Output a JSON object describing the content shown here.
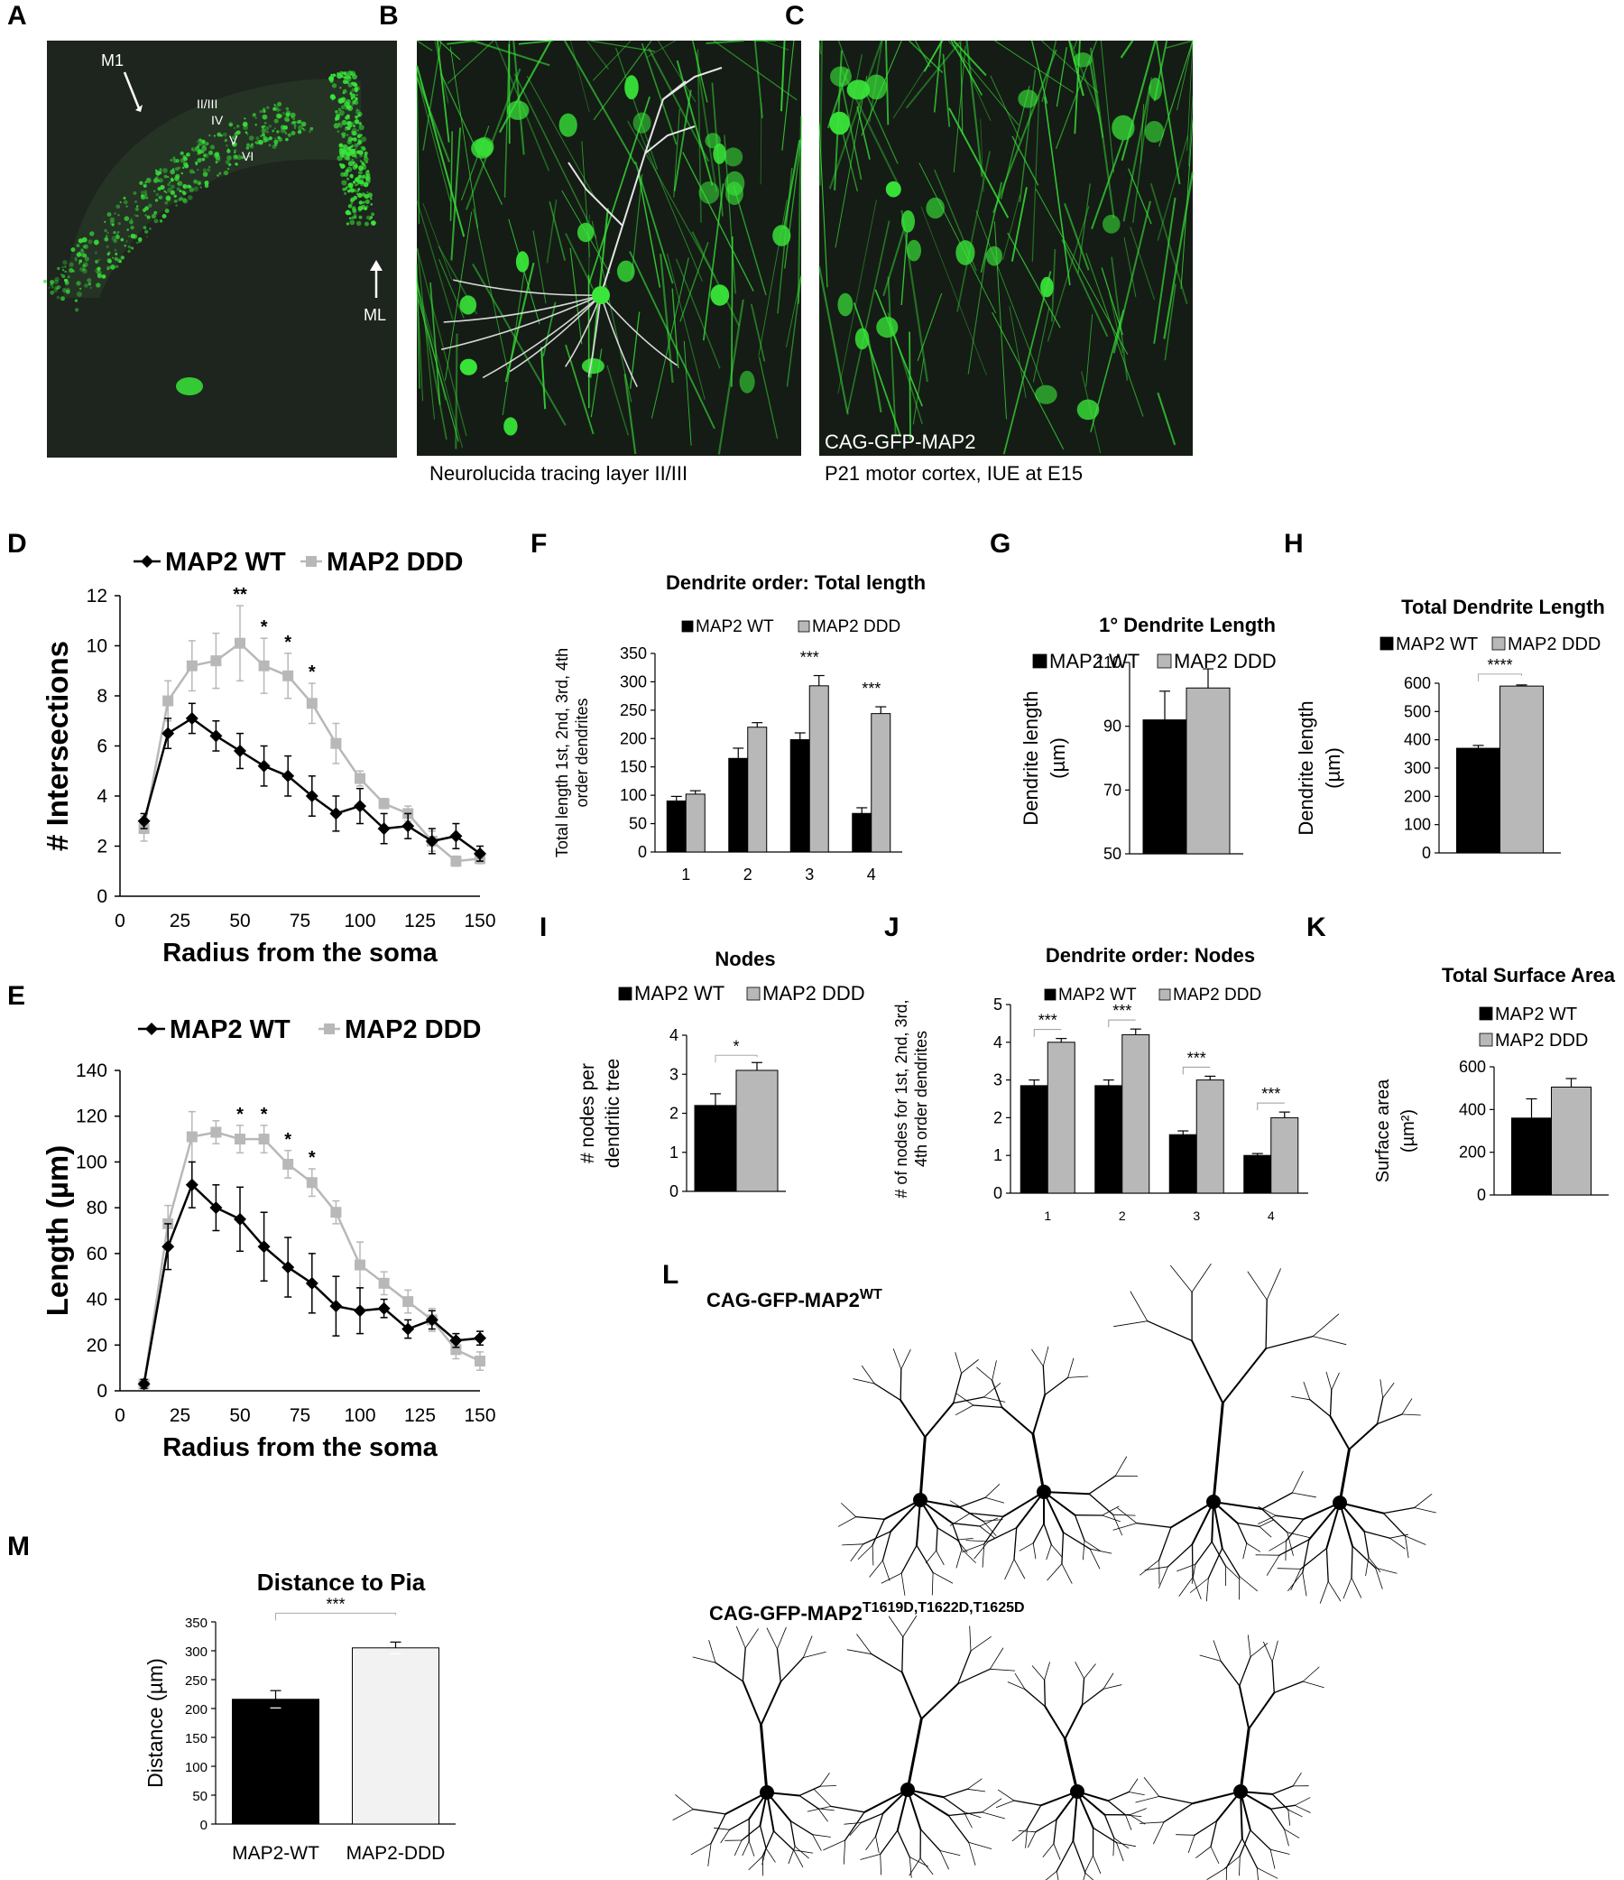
{
  "panels": {
    "A": {
      "letter": "A",
      "labels": [
        "M1",
        "II/III",
        "IV",
        "V",
        "VI",
        "ML"
      ]
    },
    "B": {
      "letter": "B",
      "caption": "Neurolucida tracing layer II/III"
    },
    "C": {
      "letter": "C",
      "overlay": "CAG-GFP-MAP2",
      "caption": "P21 motor cortex, IUE at E15"
    },
    "L": {
      "letter": "L",
      "wt_label": "CAG-GFP-MAP2",
      "wt_sup": "WT",
      "ddd_label": "CAG-GFP-MAP2",
      "ddd_sup": "T1619D,T1622D,T1625D"
    }
  },
  "colors": {
    "wt": "#000000",
    "ddd": "#b8b8b8",
    "fluor": "#39e639",
    "micro_bg": "#151c15"
  },
  "chart_data": [
    {
      "id": "D",
      "letter": "D",
      "type": "line",
      "title": "",
      "legend": [
        "MAP2 WT",
        "MAP2 DDD"
      ],
      "legend_position": "top",
      "xlabel": "Radius from the soma",
      "ylabel": "# Intersections",
      "xticks": [
        "0",
        "25",
        "50",
        "75",
        "100",
        "125",
        "150"
      ],
      "xlim": [
        0,
        150
      ],
      "yticks": [
        "0",
        "2",
        "4",
        "6",
        "8",
        "10",
        "12"
      ],
      "ylim": [
        0,
        12
      ],
      "x": [
        10,
        20,
        30,
        40,
        50,
        60,
        70,
        80,
        90,
        100,
        110,
        120,
        130,
        140,
        150
      ],
      "series": [
        {
          "name": "MAP2 WT",
          "values": [
            3.0,
            6.5,
            7.1,
            6.4,
            5.8,
            5.2,
            4.8,
            4.0,
            3.3,
            3.6,
            2.7,
            2.8,
            2.2,
            2.4,
            1.7
          ],
          "err": [
            0.3,
            0.6,
            0.6,
            0.6,
            0.7,
            0.8,
            0.8,
            0.8,
            0.7,
            0.7,
            0.6,
            0.5,
            0.5,
            0.5,
            0.3
          ]
        },
        {
          "name": "MAP2 DDD",
          "values": [
            2.7,
            7.8,
            9.2,
            9.4,
            10.1,
            9.2,
            8.8,
            7.7,
            6.1,
            4.7,
            3.7,
            3.3,
            2.2,
            1.4,
            1.5
          ],
          "err": [
            0.5,
            0.8,
            1.0,
            1.1,
            1.5,
            1.1,
            0.9,
            0.8,
            0.8,
            0.3,
            0.2,
            0.3,
            0.4,
            0.2,
            0.2
          ]
        }
      ],
      "annotations": [
        {
          "x": 50,
          "text": "**"
        },
        {
          "x": 60,
          "text": "*"
        },
        {
          "x": 70,
          "text": "*"
        },
        {
          "x": 80,
          "text": "*"
        }
      ]
    },
    {
      "id": "E",
      "letter": "E",
      "type": "line",
      "title": "",
      "legend": [
        "MAP2 WT",
        "MAP2 DDD"
      ],
      "legend_position": "top",
      "xlabel": "Radius from the soma",
      "ylabel": "Length (µm)",
      "xticks": [
        "0",
        "25",
        "50",
        "75",
        "100",
        "125",
        "150"
      ],
      "xlim": [
        0,
        150
      ],
      "yticks": [
        "0",
        "20",
        "40",
        "60",
        "80",
        "100",
        "120",
        "140"
      ],
      "ylim": [
        0,
        140
      ],
      "x": [
        10,
        20,
        30,
        40,
        50,
        60,
        70,
        80,
        90,
        100,
        110,
        120,
        130,
        140,
        150
      ],
      "series": [
        {
          "name": "MAP2 WT",
          "values": [
            3,
            63,
            90,
            80,
            75,
            63,
            54,
            47,
            37,
            35,
            36,
            27,
            31,
            22,
            23
          ],
          "err": [
            2,
            10,
            10,
            10,
            14,
            15,
            13,
            13,
            13,
            10,
            4,
            4,
            4,
            3,
            3
          ]
        },
        {
          "name": "MAP2 DDD",
          "values": [
            3,
            73,
            111,
            113,
            110,
            110,
            99,
            91,
            78,
            55,
            47,
            39,
            31,
            18,
            13
          ],
          "err": [
            2,
            8,
            11,
            5,
            6,
            6,
            6,
            6,
            5,
            10,
            5,
            5,
            5,
            4,
            4
          ]
        }
      ],
      "annotations": [
        {
          "x": 50,
          "text": "*"
        },
        {
          "x": 60,
          "text": "*"
        },
        {
          "x": 70,
          "text": "*"
        },
        {
          "x": 80,
          "text": "*"
        }
      ]
    },
    {
      "id": "F",
      "letter": "F",
      "type": "bar",
      "title": "Dendrite order: Total length",
      "legend": [
        "MAP2 WT",
        "MAP2 DDD"
      ],
      "ylabel_lines": [
        "Total length 1st, 2nd, 3rd, 4th",
        "order dendrites"
      ],
      "categories": [
        "1",
        "2",
        "3",
        "4"
      ],
      "yticks": [
        "0",
        "50",
        "100",
        "150",
        "200",
        "250",
        "300",
        "350"
      ],
      "ylim": [
        0,
        350
      ],
      "series": [
        {
          "name": "MAP2 WT",
          "values": [
            90,
            165,
            198,
            68
          ],
          "err": [
            8,
            18,
            12,
            10
          ]
        },
        {
          "name": "MAP2 DDD",
          "values": [
            102,
            220,
            293,
            244
          ],
          "err": [
            6,
            8,
            18,
            12
          ]
        }
      ],
      "annotations": [
        {
          "category": 2,
          "text": "***"
        },
        {
          "category": 3,
          "text": "***"
        }
      ]
    },
    {
      "id": "G",
      "letter": "G",
      "type": "bar",
      "title": "1° Dendrite Length",
      "legend": [
        "MAP2 WT",
        "MAP2 DDD"
      ],
      "ylabel_lines": [
        "Dendrite length",
        "(µm)"
      ],
      "categories": [
        ""
      ],
      "yticks": [
        "50",
        "70",
        "90",
        "110"
      ],
      "ylim": [
        50,
        110
      ],
      "series": [
        {
          "name": "MAP2 WT",
          "values": [
            92
          ],
          "err": [
            9
          ]
        },
        {
          "name": "MAP2 DDD",
          "values": [
            102
          ],
          "err": [
            6
          ]
        }
      ],
      "annotations": []
    },
    {
      "id": "H",
      "letter": "H",
      "type": "bar",
      "title": "Total Dendrite Length",
      "legend": [
        "MAP2 WT",
        "MAP2 DDD"
      ],
      "ylabel_lines": [
        "Dendrite length",
        "(µm)"
      ],
      "categories": [
        ""
      ],
      "yticks": [
        "0",
        "100",
        "200",
        "300",
        "400",
        "500",
        "600"
      ],
      "ylim": [
        0,
        600
      ],
      "series": [
        {
          "name": "MAP2 WT",
          "values": [
            370
          ],
          "err": [
            10
          ]
        },
        {
          "name": "MAP2 DDD",
          "values": [
            590
          ],
          "err": [
            4
          ]
        }
      ],
      "annotations": [
        {
          "text": "****"
        }
      ]
    },
    {
      "id": "I",
      "letter": "I",
      "type": "bar",
      "title": "Nodes",
      "legend": [
        "MAP2 WT",
        "MAP2 DDD"
      ],
      "ylabel_lines": [
        "# nodes per",
        "dendritic tree"
      ],
      "categories": [
        ""
      ],
      "yticks": [
        "0",
        "1",
        "2",
        "3",
        "4"
      ],
      "ylim": [
        0,
        4
      ],
      "series": [
        {
          "name": "MAP2 WT",
          "values": [
            2.2
          ],
          "err": [
            0.3
          ]
        },
        {
          "name": "MAP2 DDD",
          "values": [
            3.1
          ],
          "err": [
            0.2
          ]
        }
      ],
      "annotations": [
        {
          "text": "*"
        }
      ]
    },
    {
      "id": "J",
      "letter": "J",
      "type": "bar",
      "title": "Dendrite order: Nodes",
      "legend": [
        "MAP2 WT",
        "MAP2 DDD"
      ],
      "ylabel_lines": [
        "# of nodes for 1st, 2nd, 3rd,",
        "4th order dendrites"
      ],
      "categories": [
        "1",
        "2",
        "3",
        "4"
      ],
      "yticks": [
        "0",
        "1",
        "2",
        "3",
        "4",
        "5"
      ],
      "ylim": [
        0,
        5
      ],
      "series": [
        {
          "name": "MAP2 WT",
          "values": [
            2.85,
            2.85,
            1.55,
            1.0
          ],
          "err": [
            0.15,
            0.15,
            0.1,
            0.05
          ]
        },
        {
          "name": "MAP2 DDD",
          "values": [
            4.0,
            4.2,
            3.0,
            2.0
          ],
          "err": [
            0.1,
            0.15,
            0.1,
            0.15
          ]
        }
      ],
      "annotations": [
        {
          "category": 0,
          "text": "***"
        },
        {
          "category": 1,
          "text": "***"
        },
        {
          "category": 2,
          "text": "***"
        },
        {
          "category": 3,
          "text": "***"
        }
      ]
    },
    {
      "id": "K",
      "letter": "K",
      "type": "bar",
      "title": "Total Surface Area",
      "legend": [
        "MAP2 WT",
        "MAP2 DDD"
      ],
      "ylabel_lines": [
        "Surface area",
        "(µm²)"
      ],
      "categories": [
        ""
      ],
      "yticks": [
        "0",
        "200",
        "400",
        "600"
      ],
      "ylim": [
        0,
        600
      ],
      "series": [
        {
          "name": "MAP2 WT",
          "values": [
            360
          ],
          "err": [
            90
          ]
        },
        {
          "name": "MAP2 DDD",
          "values": [
            505
          ],
          "err": [
            40
          ]
        }
      ],
      "annotations": []
    },
    {
      "id": "M",
      "letter": "M",
      "type": "bar",
      "title": "Distance to Pia",
      "legend": [],
      "ylabel_lines": [
        "Distance (µm)"
      ],
      "categories": [
        "MAP2-WT",
        "MAP2-DDD"
      ],
      "yticks": [
        "0",
        "50",
        "100",
        "150",
        "200",
        "250",
        "300",
        "350"
      ],
      "ylim": [
        0,
        350
      ],
      "series": [
        {
          "name": "",
          "values": [
            216,
            305
          ],
          "err": [
            15,
            10
          ]
        }
      ],
      "annotations": [
        {
          "text": "***"
        }
      ]
    }
  ]
}
